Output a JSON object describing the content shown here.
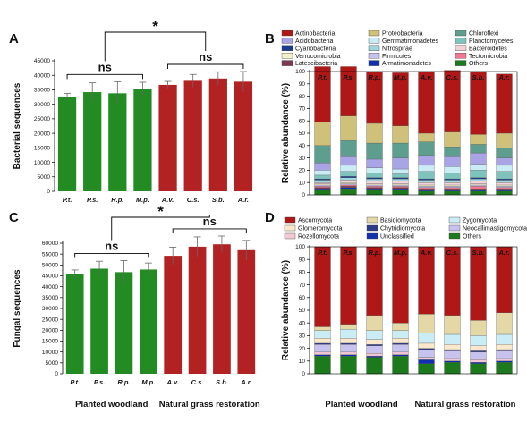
{
  "group_labels": [
    "Planted woodland",
    "Natural grass restoration"
  ],
  "chart_data": [
    {
      "panel": "A",
      "type": "bar",
      "ylabel": "Bacterial sequences",
      "ylim": [
        0,
        45000
      ],
      "yticks": [
        0,
        5000,
        10000,
        15000,
        20000,
        25000,
        30000,
        35000,
        40000,
        45000
      ],
      "categories": [
        "P.t.",
        "P.s.",
        "R.p.",
        "M.p.",
        "A.v.",
        "C.s.",
        "S.b.",
        "A.r."
      ],
      "values": [
        32500,
        34200,
        33800,
        35300,
        36700,
        38100,
        38900,
        37800
      ],
      "errors": [
        1300,
        3200,
        4000,
        2300,
        1200,
        2200,
        2300,
        3500
      ],
      "colors": [
        "#228b22",
        "#228b22",
        "#228b22",
        "#228b22",
        "#b22222",
        "#b22222",
        "#b22222",
        "#b22222"
      ],
      "significance": {
        "left": "ns",
        "right": "ns",
        "top": "*"
      }
    },
    {
      "panel": "B",
      "type": "bar",
      "stacked": true,
      "ylabel": "Relative abundance (%)",
      "ylim": [
        0,
        100
      ],
      "yticks": [
        0,
        10,
        20,
        30,
        40,
        50,
        60,
        70,
        80,
        90,
        100
      ],
      "categories": [
        "P.t.",
        "P.s.",
        "R.p.",
        "M.p.",
        "A.v.",
        "C.s.",
        "S.b.",
        "A.r."
      ],
      "legend": [
        {
          "name": "Actinobacteria",
          "color": "#b01818"
        },
        {
          "name": "Proteobacteria",
          "color": "#cfc07a"
        },
        {
          "name": "Chloroflexi",
          "color": "#5e9e8e"
        },
        {
          "name": "Acidobacteria",
          "color": "#a8a4e6"
        },
        {
          "name": "Gemmatimonadetes",
          "color": "#c9ecf5"
        },
        {
          "name": "Planctomycetes",
          "color": "#7fc4bc"
        },
        {
          "name": "Cyanobacteria",
          "color": "#1b3b8f"
        },
        {
          "name": "Nitrospirae",
          "color": "#9fd6dc"
        },
        {
          "name": "Bacteroidetes",
          "color": "#f2d2d8"
        },
        {
          "name": "Verrucomicrobia",
          "color": "#f4f0c8"
        },
        {
          "name": "Firmicutes",
          "color": "#c8c2ee"
        },
        {
          "name": "Tectomicrobia",
          "color": "#f07890"
        },
        {
          "name": "Latescibacteria",
          "color": "#7a3a52"
        },
        {
          "name": "Armatimonadetes",
          "color": "#1030b0"
        },
        {
          "name": "Others",
          "color": "#1c7a1c"
        }
      ],
      "stack_order": [
        "Others",
        "Armatimonadetes",
        "Latescibacteria",
        "Tectomicrobia",
        "Firmicutes",
        "Verrucomicrobia",
        "Bacteroidetes",
        "Nitrospirae",
        "Cyanobacteria",
        "Planctomycetes",
        "Gemmatimonadetes",
        "Acidobacteria",
        "Chloroflexi",
        "Proteobacteria",
        "Actinobacteria"
      ],
      "series": [
        {
          "name": "Others",
          "values": [
            4,
            5,
            4,
            4,
            3,
            3,
            3,
            3
          ]
        },
        {
          "name": "Armatimonadetes",
          "values": [
            1,
            1,
            1,
            1,
            1,
            1,
            1,
            1
          ]
        },
        {
          "name": "Latescibacteria",
          "values": [
            1,
            1,
            1,
            1,
            1,
            1,
            1,
            1
          ]
        },
        {
          "name": "Tectomicrobia",
          "values": [
            1,
            1,
            1,
            1,
            1,
            1,
            2,
            1
          ]
        },
        {
          "name": "Firmicutes",
          "values": [
            1,
            1,
            1,
            1,
            1,
            1,
            1,
            1
          ]
        },
        {
          "name": "Verrucomicrobia",
          "values": [
            1,
            1,
            1,
            1,
            1,
            1,
            1,
            1
          ]
        },
        {
          "name": "Bacteroidetes",
          "values": [
            1,
            2,
            2,
            2,
            2,
            2,
            2,
            2
          ]
        },
        {
          "name": "Nitrospirae",
          "values": [
            2,
            2,
            2,
            2,
            2,
            2,
            2,
            2
          ]
        },
        {
          "name": "Cyanobacteria",
          "values": [
            1,
            1,
            1,
            1,
            1,
            1,
            1,
            1
          ]
        },
        {
          "name": "Planctomycetes",
          "values": [
            3,
            4,
            4,
            3,
            6,
            5,
            6,
            6
          ]
        },
        {
          "name": "Gemmatimonadetes",
          "values": [
            4,
            5,
            4,
            4,
            5,
            5,
            5,
            5
          ]
        },
        {
          "name": "Acidobacteria",
          "values": [
            6,
            7,
            7,
            9,
            8,
            8,
            9,
            6
          ]
        },
        {
          "name": "Chloroflexi",
          "values": [
            14,
            13,
            13,
            12,
            11,
            8,
            7,
            8
          ]
        },
        {
          "name": "Proteobacteria",
          "values": [
            19,
            20,
            16,
            14,
            7,
            12,
            8,
            12
          ]
        },
        {
          "name": "Actinobacteria",
          "values": [
            45,
            40,
            42,
            43,
            50,
            50,
            51,
            48
          ]
        }
      ]
    },
    {
      "panel": "C",
      "type": "bar",
      "ylabel": "Fungal sequences",
      "ylim": [
        0,
        60000
      ],
      "yticks": [
        0,
        5000,
        10000,
        15000,
        20000,
        25000,
        30000,
        35000,
        40000,
        45000,
        50000,
        55000,
        60000
      ],
      "categories": [
        "P.t.",
        "P.s.",
        "R.p.",
        "M.p.",
        "A.v.",
        "C.s.",
        "S.b.",
        "A.r."
      ],
      "values": [
        45700,
        48300,
        46700,
        47900,
        54200,
        58400,
        59500,
        56800
      ],
      "errors": [
        2000,
        3400,
        5300,
        3000,
        4000,
        4500,
        3800,
        4500
      ],
      "colors": [
        "#228b22",
        "#228b22",
        "#228b22",
        "#228b22",
        "#b22222",
        "#b22222",
        "#b22222",
        "#b22222"
      ],
      "significance": {
        "left": "ns",
        "right": "ns",
        "top": "*"
      }
    },
    {
      "panel": "D",
      "type": "bar",
      "stacked": true,
      "ylabel": "Relative abundance (%)",
      "ylim": [
        0,
        100
      ],
      "yticks": [
        0,
        10,
        20,
        30,
        40,
        50,
        60,
        70,
        80,
        90,
        100
      ],
      "categories": [
        "P.t.",
        "P.s.",
        "R.p.",
        "M.p.",
        "A.v.",
        "C.s.",
        "S.b.",
        "A.r."
      ],
      "legend": [
        {
          "name": "Ascomycota",
          "color": "#b01818"
        },
        {
          "name": "Basidiomycota",
          "color": "#e3d8a6"
        },
        {
          "name": "Zygomycota",
          "color": "#c9ecf5"
        },
        {
          "name": "Glomeromycota",
          "color": "#fbe8cc"
        },
        {
          "name": "Chytridiomycota",
          "color": "#2d3b8a"
        },
        {
          "name": "Neocallimastigomycota",
          "color": "#c8c2ee"
        },
        {
          "name": "Rozellomycota",
          "color": "#f2c8d2"
        },
        {
          "name": "Unclassified",
          "color": "#1030b0"
        },
        {
          "name": "Others",
          "color": "#1c7a1c"
        }
      ],
      "stack_order": [
        "Others",
        "Unclassified",
        "Rozellomycota",
        "Neocallimastigomycota",
        "Chytridiomycota",
        "Glomeromycota",
        "Zygomycota",
        "Basidiomycota",
        "Ascomycota"
      ],
      "series": [
        {
          "name": "Others",
          "values": [
            14,
            14,
            13,
            14,
            8,
            9,
            8,
            9
          ]
        },
        {
          "name": "Unclassified",
          "values": [
            1,
            1,
            1,
            1,
            3,
            1,
            1,
            1
          ]
        },
        {
          "name": "Rozellomycota",
          "values": [
            2,
            2,
            2,
            2,
            2,
            2,
            2,
            2
          ]
        },
        {
          "name": "Neocallimastigomycota",
          "values": [
            6,
            6,
            6,
            6,
            6,
            6,
            6,
            6
          ]
        },
        {
          "name": "Chytridiomycota",
          "values": [
            1,
            1,
            1,
            1,
            1,
            1,
            1,
            1
          ]
        },
        {
          "name": "Glomeromycota",
          "values": [
            4,
            4,
            4,
            4,
            4,
            4,
            4,
            4
          ]
        },
        {
          "name": "Zygomycota",
          "values": [
            6,
            7,
            7,
            6,
            8,
            8,
            8,
            8
          ]
        },
        {
          "name": "Basidiomycota",
          "values": [
            3,
            4,
            12,
            6,
            15,
            15,
            12,
            17
          ]
        },
        {
          "name": "Ascomycota",
          "values": [
            63,
            61,
            54,
            60,
            53,
            54,
            58,
            52
          ]
        }
      ]
    }
  ]
}
